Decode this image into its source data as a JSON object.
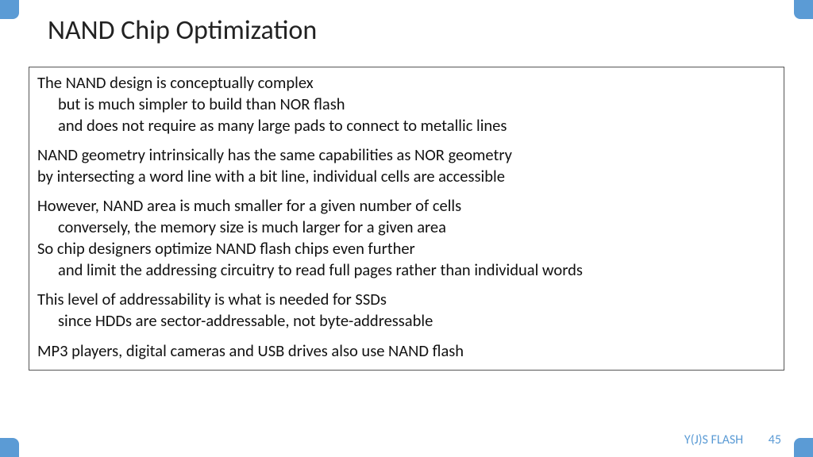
{
  "colors": {
    "accent": "#5b9bd5",
    "text": "#111111",
    "border": "#555555",
    "background": "#ffffff"
  },
  "title": "NAND Chip Optimization",
  "paragraphs": [
    {
      "lines": [
        {
          "text": "The NAND design is conceptually complex",
          "indent": false
        },
        {
          "text": "but is much simpler to build than NOR flash",
          "indent": true
        },
        {
          "text": "and does not require as many large pads to connect to metallic lines",
          "indent": true
        }
      ]
    },
    {
      "lines": [
        {
          "text": "NAND geometry intrinsically has the same capabilities as NOR geometry",
          "indent": false
        },
        {
          "text": " by intersecting a word line with a bit line, individual cells are accessible",
          "indent": false
        }
      ]
    },
    {
      "lines": [
        {
          "text": "However, NAND area is much smaller for a given number of cells",
          "indent": false
        },
        {
          "text": "conversely, the memory size is much larger for a given area",
          "indent": true
        },
        {
          "text": "So chip designers optimize NAND flash chips even further",
          "indent": false
        },
        {
          "text": "and limit the addressing circuitry to read full pages rather than individual words",
          "indent": true
        }
      ]
    },
    {
      "lines": [
        {
          "text": "This level of addressability is what is needed for SSDs",
          "indent": false
        },
        {
          "text": "since HDDs are sector-addressable, not byte-addressable",
          "indent": true
        }
      ]
    },
    {
      "lines": [
        {
          "text": "MP3 players, digital cameras and USB drives also use NAND flash",
          "indent": false
        }
      ]
    }
  ],
  "footer": {
    "label": "Y(J)S  FLASH",
    "page": "45"
  }
}
